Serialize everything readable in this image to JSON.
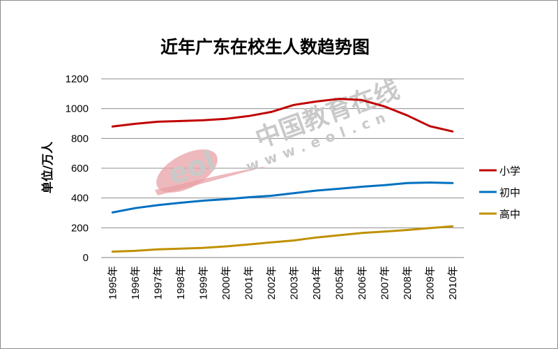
{
  "chart_data": {
    "type": "line",
    "title": "近年广东在校生人数趋势图",
    "ylabel": "单位/万人",
    "xlabel": "",
    "ylim": [
      0,
      1200
    ],
    "yticks": [
      0,
      200,
      400,
      600,
      800,
      1000,
      1200
    ],
    "grid": true,
    "legend_position": "right",
    "categories": [
      "1995年",
      "1996年",
      "1997年",
      "1998年",
      "1999年",
      "2000年",
      "2001年",
      "2002年",
      "2003年",
      "2004年",
      "2005年",
      "2006年",
      "2007年",
      "2008年",
      "2009年",
      "2010年"
    ],
    "series": [
      {
        "name": "小学",
        "color": "#c00000",
        "values": [
          880,
          898,
          912,
          917,
          922,
          932,
          950,
          978,
          1025,
          1048,
          1066,
          1058,
          1015,
          955,
          882,
          847
        ]
      },
      {
        "name": "初中",
        "color": "#0070c0",
        "values": [
          303,
          332,
          352,
          368,
          382,
          392,
          405,
          415,
          432,
          450,
          462,
          476,
          486,
          500,
          504,
          500
        ]
      },
      {
        "name": "高中",
        "color": "#c09000",
        "values": [
          40,
          45,
          55,
          60,
          65,
          75,
          88,
          102,
          115,
          135,
          150,
          165,
          175,
          185,
          198,
          210
        ]
      }
    ]
  },
  "watermark": {
    "logo_text": "eol",
    "cn_text": "中国教育在线",
    "url_text": "www.eol.cn"
  }
}
